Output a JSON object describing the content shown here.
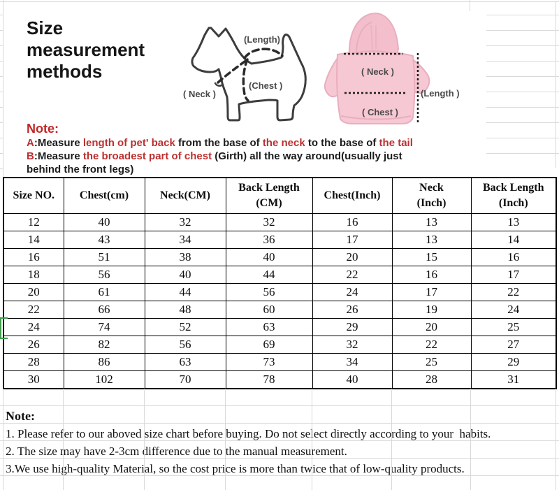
{
  "title": "Size measurement methods",
  "diagram": {
    "dog": {
      "length_label": "(Length)",
      "neck_label": "( Neck )",
      "chest_label": "(Chest )"
    },
    "hoodie": {
      "neck_label": "( Neck )",
      "length_label": "(Length )",
      "chest_label": "( Chest )"
    }
  },
  "measure_note": {
    "title": "Note:",
    "lines": [
      {
        "segments": [
          {
            "text": "A",
            "red": true
          },
          {
            "text": ":Measure ",
            "red": false
          },
          {
            "text": "length of pet' back ",
            "red": true
          },
          {
            "text": "from the base of ",
            "red": false
          },
          {
            "text": "the neck ",
            "red": true
          },
          {
            "text": "to the base of ",
            "red": false
          },
          {
            "text": "the tail",
            "red": true
          }
        ]
      },
      {
        "segments": [
          {
            "text": "B",
            "red": true
          },
          {
            "text": ":Measure ",
            "red": false
          },
          {
            "text": "the broadest part of chest ",
            "red": true
          },
          {
            "text": "(Girth) all the way around(usually just",
            "red": false
          }
        ]
      },
      {
        "segments": [
          {
            "text": "behind the front legs)",
            "red": false
          }
        ]
      }
    ]
  },
  "size_table": {
    "headers": [
      [
        "Size NO."
      ],
      [
        "Chest(cm)"
      ],
      [
        "Neck(CM)"
      ],
      [
        "Back Length",
        "(CM)"
      ],
      [
        "Chest(Inch)"
      ],
      [
        "Neck",
        "(Inch)"
      ],
      [
        "Back Length",
        "(Inch)"
      ]
    ],
    "rows": [
      [
        "12",
        "40",
        "32",
        "32",
        "16",
        "13",
        "13"
      ],
      [
        "14",
        "43",
        "34",
        "36",
        "17",
        "13",
        "14"
      ],
      [
        "16",
        "51",
        "38",
        "40",
        "20",
        "15",
        "16"
      ],
      [
        "18",
        "56",
        "40",
        "44",
        "22",
        "16",
        "17"
      ],
      [
        "20",
        "61",
        "44",
        "56",
        "24",
        "17",
        "22"
      ],
      [
        "22",
        "66",
        "48",
        "60",
        "26",
        "19",
        "24"
      ],
      [
        "24",
        "74",
        "52",
        "63",
        "29",
        "20",
        "25"
      ],
      [
        "26",
        "82",
        "56",
        "69",
        "32",
        "22",
        "27"
      ],
      [
        "28",
        "86",
        "63",
        "73",
        "34",
        "25",
        "29"
      ],
      [
        "30",
        "102",
        "70",
        "78",
        "40",
        "28",
        "31"
      ]
    ]
  },
  "bottom_note": {
    "title": "Note:",
    "lines": [
      "1. Please refer to our aboved size chart before buying. Do not select directly according to your  habits.",
      "2. The size may have 2-3cm difference due to the manual measurement.",
      "3.We use high-quality Material, so the cost price is more than twice that of low-quality products."
    ]
  },
  "colors": {
    "note_red": "#bb3030",
    "ink": "#0d0d0d",
    "diagram_ink": "#4a4a4a",
    "dog_outline": "#3d3d3d",
    "hoodie_pink": "#f6c8d3",
    "hoodie_pink_edge": "#e9aebf",
    "grid": "#d9d9d9",
    "selection_green": "#3f9e4d"
  }
}
